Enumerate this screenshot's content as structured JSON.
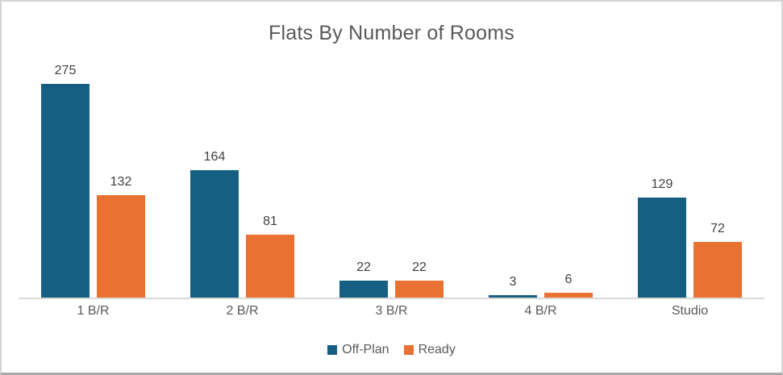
{
  "chart_data": {
    "type": "bar",
    "title": "Flats By Number of Rooms",
    "categories": [
      "1 B/R",
      "2 B/R",
      "3 B/R",
      "4 B/R",
      "Studio"
    ],
    "series": [
      {
        "name": "Off-Plan",
        "color": "#156082",
        "values": [
          275,
          164,
          22,
          3,
          129
        ]
      },
      {
        "name": "Ready",
        "color": "#E97132",
        "values": [
          132,
          81,
          22,
          6,
          72
        ]
      }
    ],
    "ylim": [
      0,
      300
    ],
    "grid": false,
    "legend_position": "bottom",
    "data_labels": true,
    "colors": {
      "title_text": "#595959",
      "data_label_text": "#404040",
      "category_text": "#595959",
      "legend_text": "#595959",
      "axis_line": "#D9D9D9",
      "background": "#FFFFFF",
      "frame_border": "#D5D5D5"
    }
  }
}
